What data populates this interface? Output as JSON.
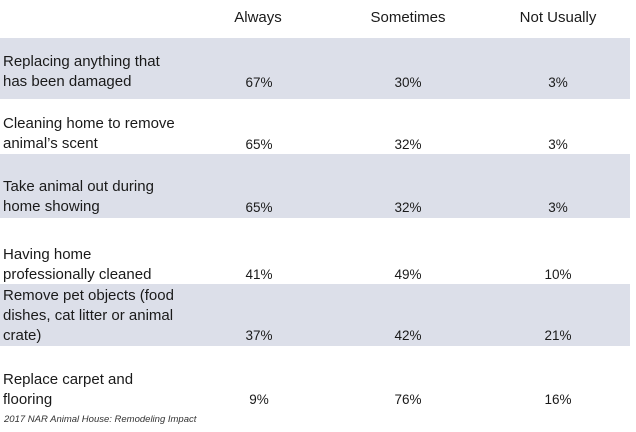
{
  "columns": [
    "Always",
    "Sometimes",
    "Not Usually"
  ],
  "rows": [
    {
      "label_lines": [
        "Replacing anything that",
        "has been damaged"
      ],
      "values": [
        "67%",
        "30%",
        "3%"
      ]
    },
    {
      "label_lines": [
        "Cleaning home to remove",
        "animal’s scent"
      ],
      "values": [
        "65%",
        "32%",
        "3%"
      ]
    },
    {
      "label_lines": [
        "Take animal out during",
        "home showing"
      ],
      "values": [
        "65%",
        "32%",
        "3%"
      ]
    },
    {
      "label_lines": [
        "Having home",
        "professionally cleaned"
      ],
      "values": [
        "41%",
        "49%",
        "10%"
      ]
    },
    {
      "label_lines": [
        "Remove pet objects (food",
        "dishes, cat litter or animal",
        "crate)"
      ],
      "values": [
        "37%",
        "42%",
        "21%"
      ]
    },
    {
      "label_lines": [
        "Replace carpet and",
        "flooring"
      ],
      "values": [
        "9%",
        "76%",
        "16%"
      ]
    }
  ],
  "footer": "2017 NAR Animal House: Remodeling Impact",
  "colors": {
    "shaded_row": "#dcdfe9",
    "background": "#ffffff",
    "text": "#1a1a1a"
  }
}
